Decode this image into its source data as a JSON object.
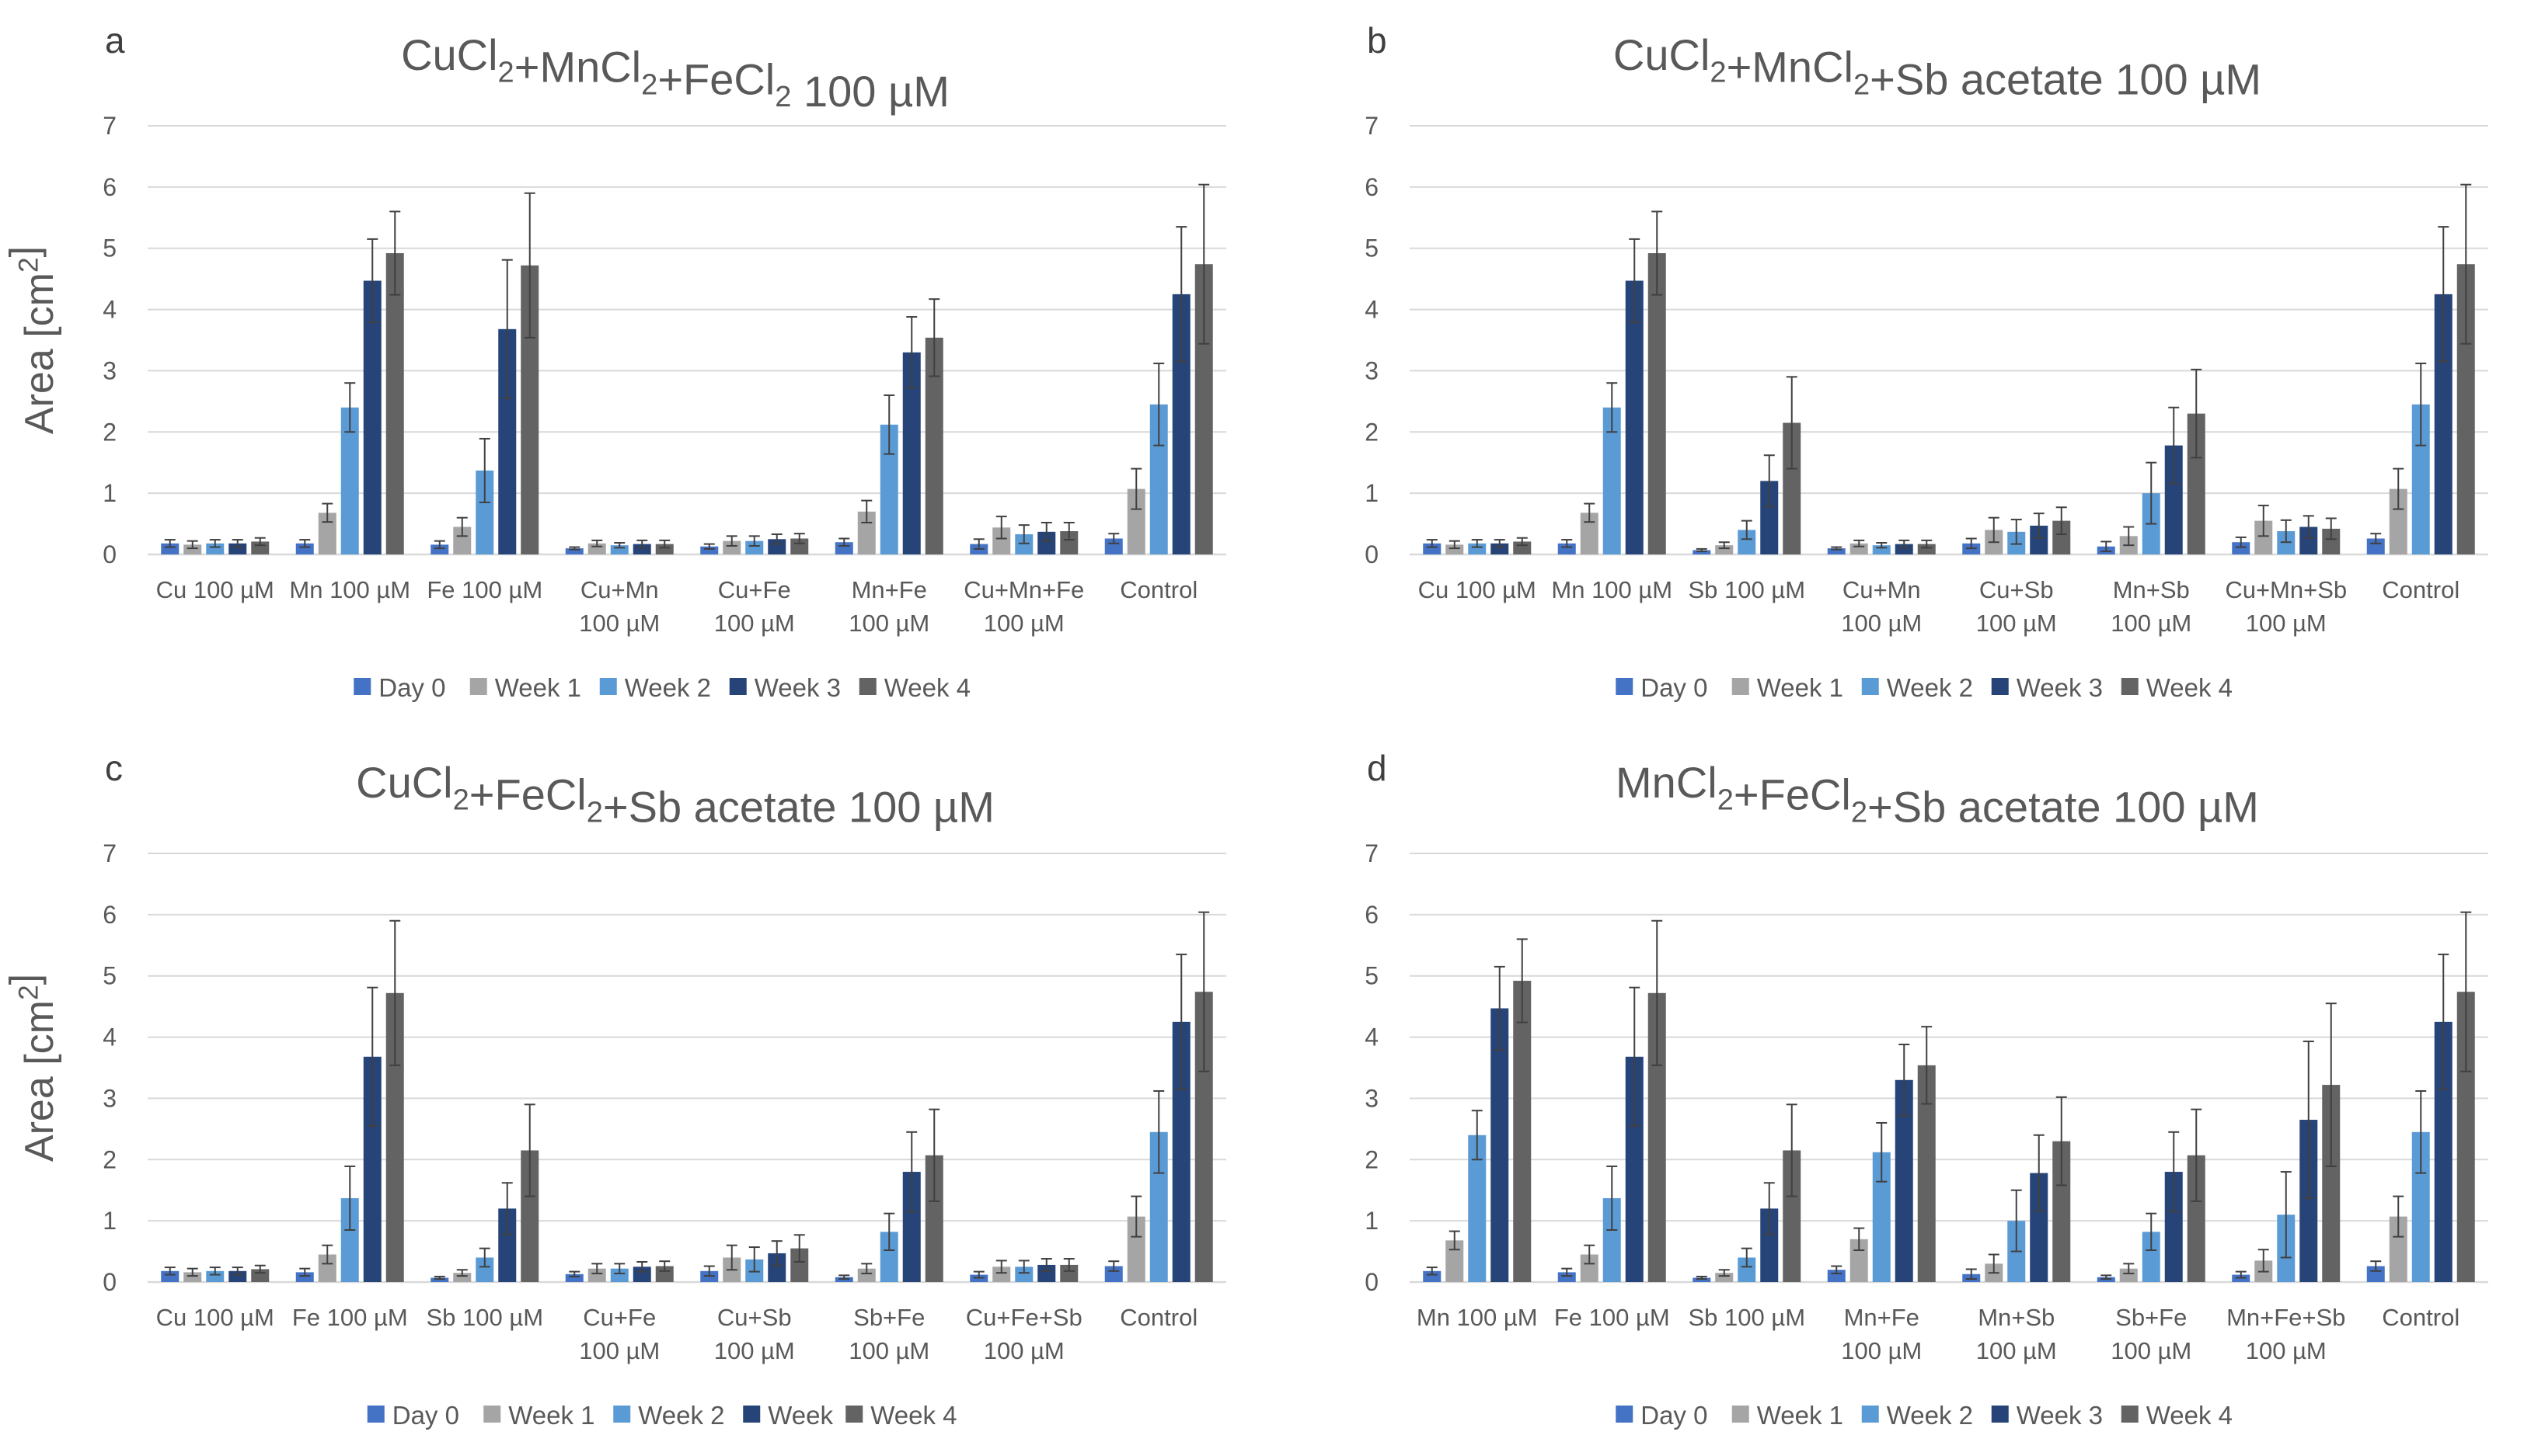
{
  "colors": {
    "day0": "#4472C4",
    "week1": "#A5A5A5",
    "week2": "#5B9BD5",
    "week3": "#264478",
    "week4": "#636363",
    "axis_text": "#595959",
    "grid": "#D9D9D9",
    "error_bar": "#404040"
  },
  "chart_data": [
    {
      "type": "bar",
      "panel_letter": "a",
      "title": "CuCl2+MnCl2+FeCl2 100 µM",
      "ylabel": "Area [cm2]",
      "xlabel": "",
      "ylim": [
        0,
        7
      ],
      "yticks": [
        "0",
        "1",
        "2",
        "3",
        "4",
        "5",
        "6",
        "7"
      ],
      "legend_position": "bottom",
      "grid": true,
      "categories": [
        [
          "Cu 100 µM"
        ],
        [
          "Mn 100 µM"
        ],
        [
          "Fe 100 µM"
        ],
        [
          "Cu+Mn",
          "100 µM"
        ],
        [
          "Cu+Fe",
          "100 µM"
        ],
        [
          "Mn+Fe",
          "100 µM"
        ],
        [
          "Cu+Mn+Fe",
          "100 µM"
        ],
        [
          "Control"
        ]
      ],
      "series": [
        {
          "name": "Day 0",
          "values": [
            0.18,
            0.18,
            0.16,
            0.1,
            0.13,
            0.2,
            0.17,
            0.26
          ],
          "errors": [
            0.06,
            0.06,
            0.06,
            0.02,
            0.04,
            0.06,
            0.08,
            0.08
          ]
        },
        {
          "name": "Week 1",
          "values": [
            0.16,
            0.68,
            0.45,
            0.18,
            0.22,
            0.7,
            0.44,
            1.07
          ],
          "errors": [
            0.06,
            0.15,
            0.15,
            0.05,
            0.08,
            0.18,
            0.18,
            0.33
          ]
        },
        {
          "name": "Week 2",
          "values": [
            0.18,
            2.4,
            1.37,
            0.15,
            0.22,
            2.12,
            0.33,
            2.45
          ],
          "errors": [
            0.06,
            0.4,
            0.52,
            0.04,
            0.08,
            0.48,
            0.15,
            0.67
          ]
        },
        {
          "name": "Week 3",
          "values": [
            0.18,
            4.47,
            3.68,
            0.17,
            0.25,
            3.3,
            0.37,
            4.25
          ],
          "errors": [
            0.06,
            0.68,
            1.13,
            0.06,
            0.08,
            0.58,
            0.15,
            1.1
          ]
        },
        {
          "name": "Week 4",
          "values": [
            0.21,
            4.92,
            4.72,
            0.17,
            0.26,
            3.54,
            0.38,
            4.74
          ],
          "errors": [
            0.06,
            0.68,
            1.18,
            0.06,
            0.08,
            0.63,
            0.14,
            1.3
          ]
        }
      ]
    },
    {
      "type": "bar",
      "panel_letter": "b",
      "title": "CuCl2+MnCl2+Sb acetate 100 µM",
      "ylabel": "",
      "xlabel": "",
      "ylim": [
        0,
        7
      ],
      "yticks": [
        "0",
        "1",
        "2",
        "3",
        "4",
        "5",
        "6",
        "7"
      ],
      "legend_position": "bottom",
      "grid": true,
      "categories": [
        [
          "Cu 100 µM"
        ],
        [
          "Mn 100 µM"
        ],
        [
          "Sb 100 µM"
        ],
        [
          "Cu+Mn",
          "100 µM"
        ],
        [
          "Cu+Sb",
          "100 µM"
        ],
        [
          "Mn+Sb",
          "100 µM"
        ],
        [
          "Cu+Mn+Sb",
          "100 µM"
        ],
        [
          "Control"
        ]
      ],
      "series": [
        {
          "name": "Day 0",
          "values": [
            0.18,
            0.18,
            0.07,
            0.1,
            0.18,
            0.13,
            0.2,
            0.26
          ],
          "errors": [
            0.06,
            0.06,
            0.02,
            0.02,
            0.08,
            0.08,
            0.08,
            0.08
          ]
        },
        {
          "name": "Week 1",
          "values": [
            0.16,
            0.68,
            0.15,
            0.18,
            0.4,
            0.3,
            0.55,
            1.07
          ],
          "errors": [
            0.06,
            0.15,
            0.05,
            0.05,
            0.2,
            0.15,
            0.25,
            0.33
          ]
        },
        {
          "name": "Week 2",
          "values": [
            0.18,
            2.4,
            0.4,
            0.15,
            0.37,
            1.0,
            0.38,
            2.45
          ],
          "errors": [
            0.06,
            0.4,
            0.15,
            0.04,
            0.2,
            0.5,
            0.18,
            0.67
          ]
        },
        {
          "name": "Week 3",
          "values": [
            0.18,
            4.47,
            1.2,
            0.17,
            0.47,
            1.78,
            0.45,
            4.25
          ],
          "errors": [
            0.06,
            0.68,
            0.42,
            0.06,
            0.2,
            0.62,
            0.18,
            1.1
          ]
        },
        {
          "name": "Week 4",
          "values": [
            0.21,
            4.92,
            2.15,
            0.17,
            0.55,
            2.3,
            0.42,
            4.74
          ],
          "errors": [
            0.06,
            0.68,
            0.75,
            0.06,
            0.22,
            0.72,
            0.17,
            1.3
          ]
        }
      ]
    },
    {
      "type": "bar",
      "panel_letter": "c",
      "title": "CuCl2+FeCl2+Sb acetate 100 µM",
      "ylabel": "Area [cm2]",
      "xlabel": "",
      "ylim": [
        0,
        7
      ],
      "yticks": [
        "0",
        "1",
        "2",
        "3",
        "4",
        "5",
        "6",
        "7"
      ],
      "legend_position": "bottom",
      "grid": true,
      "categories": [
        [
          "Cu 100 µM"
        ],
        [
          "Fe 100 µM"
        ],
        [
          "Sb 100 µM"
        ],
        [
          "Cu+Fe",
          "100 µM"
        ],
        [
          "Cu+Sb",
          "100 µM"
        ],
        [
          "Sb+Fe",
          "100 µM"
        ],
        [
          "Cu+Fe+Sb",
          "100 µM"
        ],
        [
          "Control"
        ]
      ],
      "series": [
        {
          "name": "Day 0",
          "values": [
            0.18,
            0.16,
            0.07,
            0.13,
            0.18,
            0.08,
            0.12,
            0.26
          ],
          "errors": [
            0.06,
            0.06,
            0.02,
            0.04,
            0.08,
            0.03,
            0.05,
            0.08
          ]
        },
        {
          "name": "Week 1",
          "values": [
            0.16,
            0.45,
            0.15,
            0.22,
            0.4,
            0.22,
            0.25,
            1.07
          ],
          "errors": [
            0.06,
            0.15,
            0.05,
            0.08,
            0.2,
            0.08,
            0.1,
            0.33
          ]
        },
        {
          "name": "Week 2",
          "values": [
            0.18,
            1.37,
            0.4,
            0.22,
            0.37,
            0.82,
            0.25,
            2.45
          ],
          "errors": [
            0.06,
            0.52,
            0.15,
            0.08,
            0.2,
            0.3,
            0.1,
            0.67
          ]
        },
        {
          "name": "Week",
          "values": [
            0.18,
            3.68,
            1.2,
            0.25,
            0.47,
            1.8,
            0.28,
            4.25
          ],
          "errors": [
            0.06,
            1.13,
            0.42,
            0.08,
            0.2,
            0.65,
            0.1,
            1.1
          ]
        },
        {
          "name": "Week 4",
          "values": [
            0.21,
            4.72,
            2.15,
            0.26,
            0.55,
            2.07,
            0.28,
            4.74
          ],
          "errors": [
            0.06,
            1.18,
            0.75,
            0.08,
            0.22,
            0.75,
            0.1,
            1.3
          ]
        }
      ]
    },
    {
      "type": "bar",
      "panel_letter": "d",
      "title": "MnCl2+FeCl2+Sb acetate 100 µM",
      "ylabel": "",
      "xlabel": "",
      "ylim": [
        0,
        7
      ],
      "yticks": [
        "0",
        "1",
        "2",
        "3",
        "4",
        "5",
        "6",
        "7"
      ],
      "legend_position": "bottom",
      "grid": true,
      "categories": [
        [
          "Mn 100 µM"
        ],
        [
          "Fe 100 µM"
        ],
        [
          "Sb 100 µM"
        ],
        [
          "Mn+Fe",
          "100 µM"
        ],
        [
          "Mn+Sb",
          "100 µM"
        ],
        [
          "Sb+Fe",
          "100 µM"
        ],
        [
          "Mn+Fe+Sb",
          "100 µM"
        ],
        [
          "Control"
        ]
      ],
      "series": [
        {
          "name": "Day 0",
          "values": [
            0.18,
            0.16,
            0.07,
            0.2,
            0.13,
            0.08,
            0.12,
            0.26
          ],
          "errors": [
            0.06,
            0.06,
            0.02,
            0.06,
            0.08,
            0.03,
            0.05,
            0.08
          ]
        },
        {
          "name": "Week 1",
          "values": [
            0.68,
            0.45,
            0.15,
            0.7,
            0.3,
            0.22,
            0.35,
            1.07
          ],
          "errors": [
            0.15,
            0.15,
            0.05,
            0.18,
            0.15,
            0.08,
            0.18,
            0.33
          ]
        },
        {
          "name": "Week 2",
          "values": [
            2.4,
            1.37,
            0.4,
            2.12,
            1.0,
            0.82,
            1.1,
            2.45
          ],
          "errors": [
            0.4,
            0.52,
            0.15,
            0.48,
            0.5,
            0.3,
            0.7,
            0.67
          ]
        },
        {
          "name": "Week 3",
          "values": [
            4.47,
            3.68,
            1.2,
            3.3,
            1.78,
            1.8,
            2.65,
            4.25
          ],
          "errors": [
            0.68,
            1.13,
            0.42,
            0.58,
            0.62,
            0.65,
            1.28,
            1.1
          ]
        },
        {
          "name": "Week 4",
          "values": [
            4.92,
            4.72,
            2.15,
            3.54,
            2.3,
            2.07,
            3.22,
            4.74
          ],
          "errors": [
            0.68,
            1.18,
            0.75,
            0.63,
            0.72,
            0.75,
            1.33,
            1.3
          ]
        }
      ]
    }
  ]
}
